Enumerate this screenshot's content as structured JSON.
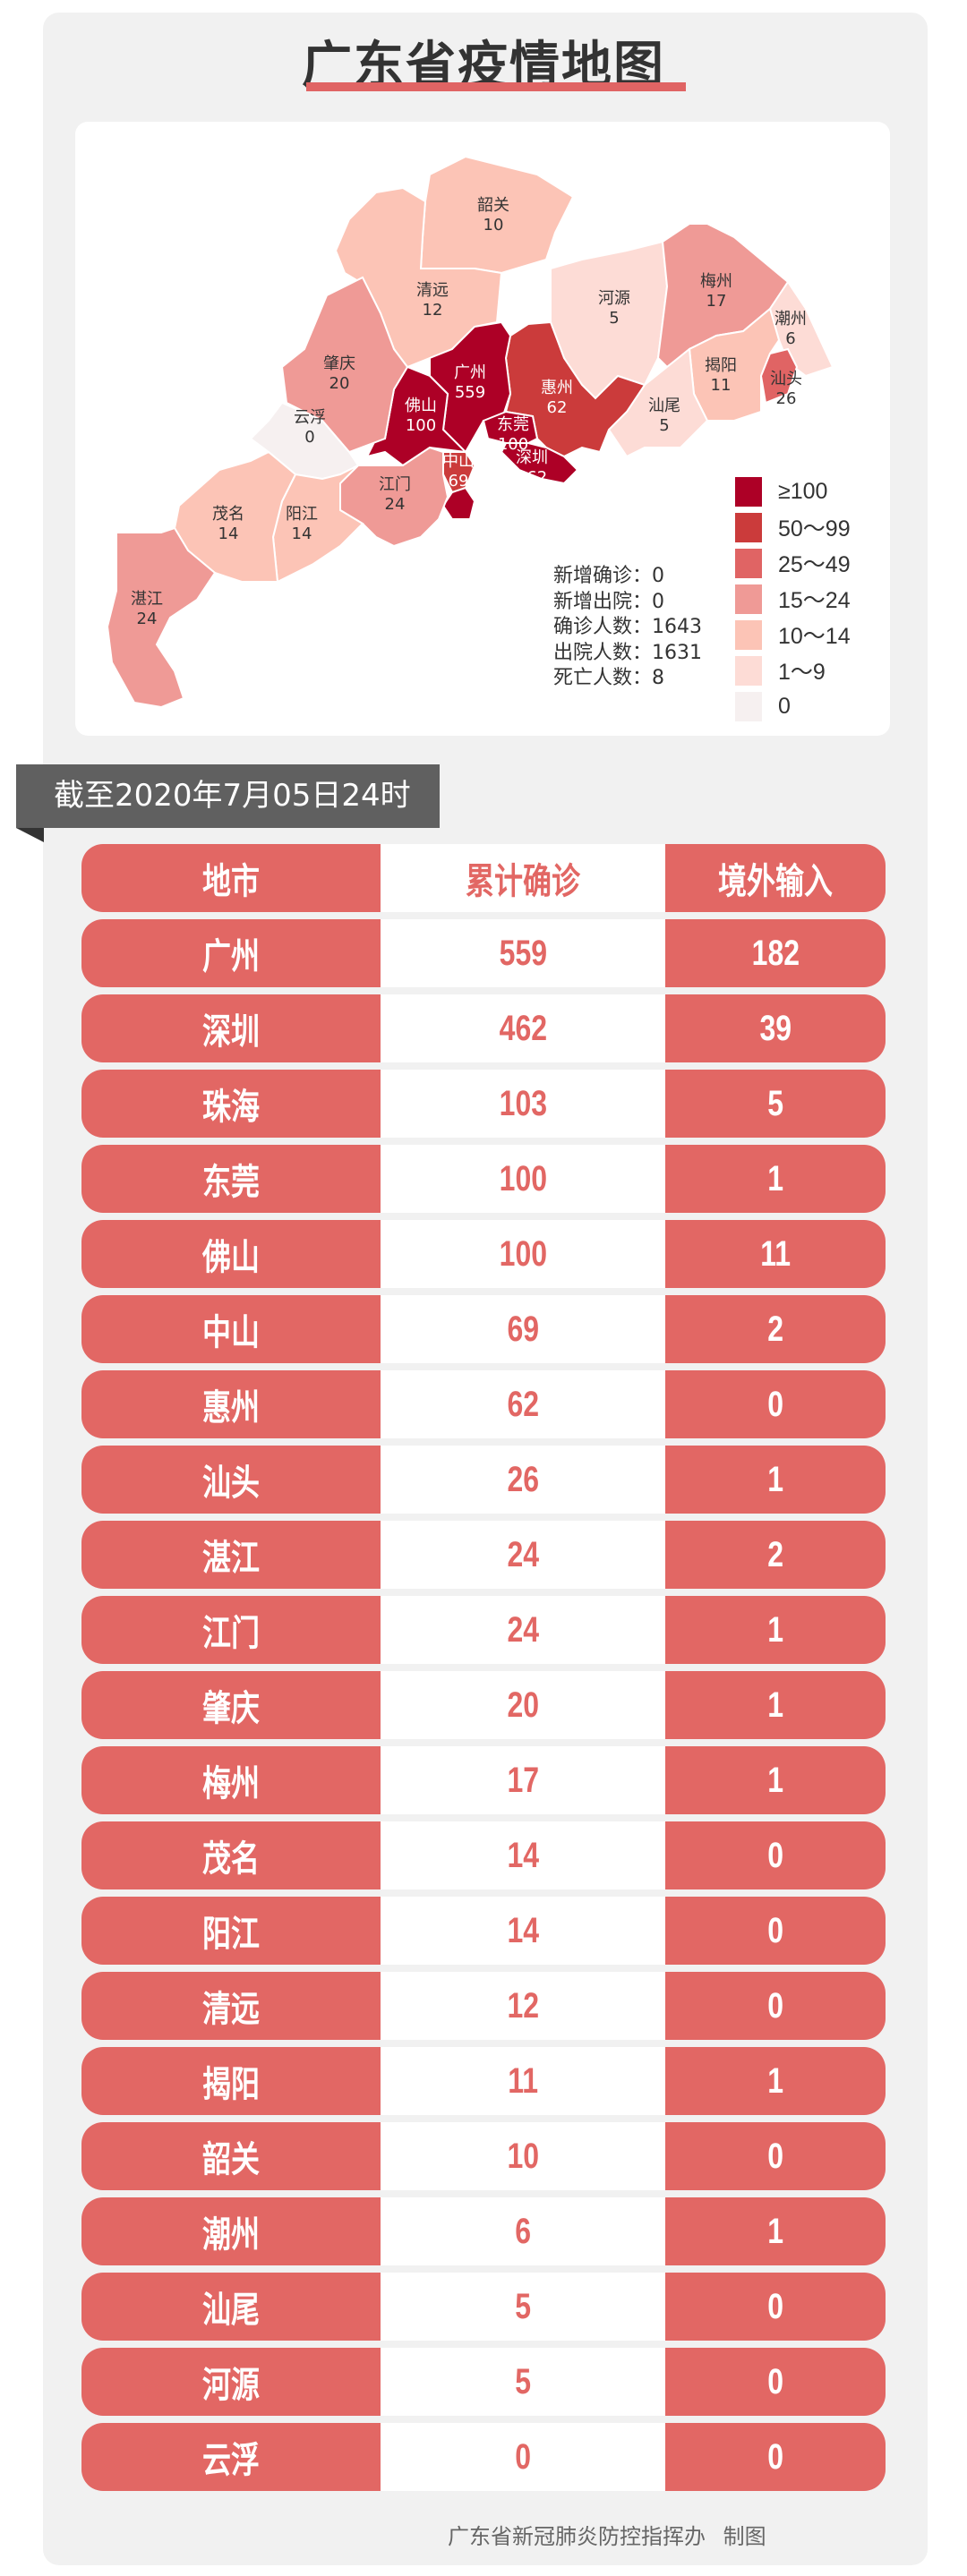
{
  "title": "广东省疫情地图",
  "map": {
    "regions": [
      {
        "name": "韶关",
        "value": "10",
        "color": "#fcc4b6"
      },
      {
        "name": "清远",
        "value": "12",
        "color": "#fcc4b6"
      },
      {
        "name": "河源",
        "value": "5",
        "color": "#fddcd6"
      },
      {
        "name": "梅州",
        "value": "17",
        "color": "#ef9a96"
      },
      {
        "name": "潮州",
        "value": "6",
        "color": "#fddcd6"
      },
      {
        "name": "揭阳",
        "value": "11",
        "color": "#fcc4b6"
      },
      {
        "name": "汕头",
        "value": "26",
        "color": "#e06464"
      },
      {
        "name": "汕尾",
        "value": "5",
        "color": "#fddcd6"
      },
      {
        "name": "惠州",
        "value": "62",
        "color": "#cb3b3b"
      },
      {
        "name": "广州",
        "value": "559",
        "color": "#ad0026"
      },
      {
        "name": "佛山",
        "value": "100",
        "color": "#ad0026"
      },
      {
        "name": "东莞",
        "value": "100",
        "color": "#ad0026"
      },
      {
        "name": "深圳",
        "value": "462",
        "color": "#ad0026"
      },
      {
        "name": "中山",
        "value": "69",
        "color": "#cb3b3b"
      },
      {
        "name": "珠海",
        "value": "103",
        "color": "#ad0026"
      },
      {
        "name": "江门",
        "value": "24",
        "color": "#ef9a96"
      },
      {
        "name": "肇庆",
        "value": "20",
        "color": "#ef9a96"
      },
      {
        "name": "云浮",
        "value": "0",
        "color": "#f6f0f0"
      },
      {
        "name": "阳江",
        "value": "14",
        "color": "#fcc4b6"
      },
      {
        "name": "茂名",
        "value": "14",
        "color": "#fcc4b6"
      },
      {
        "name": "湛江",
        "value": "24",
        "color": "#ef9a96"
      }
    ],
    "legend": [
      {
        "label": "≥100",
        "color": "#ad0026"
      },
      {
        "label": "50～99",
        "color": "#cb3b3b"
      },
      {
        "label": "25～49",
        "color": "#e06464"
      },
      {
        "label": "15～24",
        "color": "#ef9a96"
      },
      {
        "label": "10～14",
        "color": "#fcc4b6"
      },
      {
        "label": "1～9",
        "color": "#fddcd6"
      },
      {
        "label": "0",
        "color": "#f6f0f0"
      }
    ],
    "stats": [
      "新增确诊：0",
      "新增出院：0",
      "确诊人数：1643",
      "出院人数：1631",
      "死亡人数：8"
    ]
  },
  "banner": "截至2020年7月05日24时",
  "table": {
    "headers": [
      "地市",
      "累计确诊",
      "境外输入"
    ],
    "rows": [
      [
        "广州",
        "559",
        "182"
      ],
      [
        "深圳",
        "462",
        "39"
      ],
      [
        "珠海",
        "103",
        "5"
      ],
      [
        "东莞",
        "100",
        "1"
      ],
      [
        "佛山",
        "100",
        "11"
      ],
      [
        "中山",
        "69",
        "2"
      ],
      [
        "惠州",
        "62",
        "0"
      ],
      [
        "汕头",
        "26",
        "1"
      ],
      [
        "湛江",
        "24",
        "2"
      ],
      [
        "江门",
        "24",
        "1"
      ],
      [
        "肇庆",
        "20",
        "1"
      ],
      [
        "梅州",
        "17",
        "1"
      ],
      [
        "茂名",
        "14",
        "0"
      ],
      [
        "阳江",
        "14",
        "0"
      ],
      [
        "清远",
        "12",
        "0"
      ],
      [
        "揭阳",
        "11",
        "1"
      ],
      [
        "韶关",
        "10",
        "0"
      ],
      [
        "潮州",
        "6",
        "1"
      ],
      [
        "汕尾",
        "5",
        "0"
      ],
      [
        "河源",
        "5",
        "0"
      ],
      [
        "云浮",
        "0",
        "0"
      ]
    ]
  },
  "footer": "广东省新冠肺炎防控指挥办 制图",
  "colors": {
    "accent": "#e26764",
    "banner": "#606060",
    "card": "#f1f1f1"
  }
}
